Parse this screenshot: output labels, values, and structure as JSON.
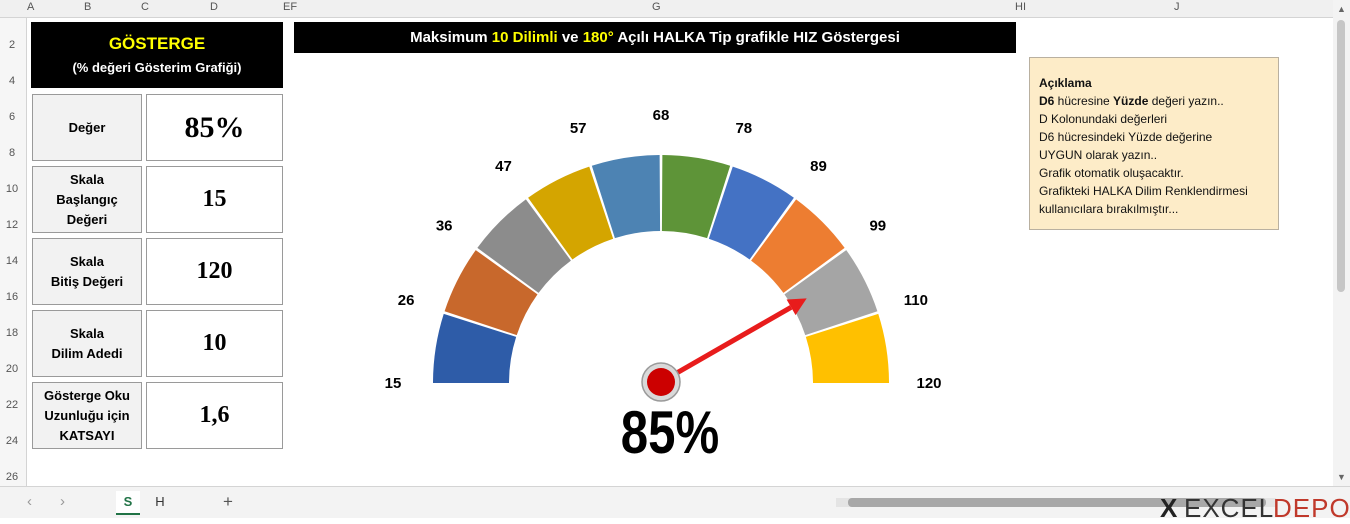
{
  "sheet": {
    "columns": [
      "A",
      "B",
      "C",
      "D",
      "EF",
      "G",
      "HI",
      "J"
    ],
    "rows": [
      "2",
      "4",
      "6",
      "8",
      "10",
      "12",
      "14",
      "16",
      "18",
      "20",
      "22",
      "24",
      "26"
    ]
  },
  "panel": {
    "title": "GÖSTERGE",
    "subtitle": "(% değeri Gösterim Grafiği)",
    "rows": [
      {
        "label": "Değer",
        "value": "85%"
      },
      {
        "label": "Skala\nBaşlangıç\nDeğeri",
        "value": "15"
      },
      {
        "label": "Skala\nBitiş Değeri",
        "value": "120"
      },
      {
        "label": "Skala\nDilim Adedi",
        "value": "10"
      },
      {
        "label": "Gösterge Oku\nUzunluğu için\nKATSAYI",
        "value": "1,6"
      }
    ]
  },
  "banner": {
    "part1": "Maksimum ",
    "hl1": "10 Dilimli",
    "part2": " ve ",
    "hl2": "180°",
    "part3": " Açılı HALKA Tip grafikle  HIZ  Göstergesi",
    "highlight_color": "#ffff00"
  },
  "note": {
    "heading": "Açıklama",
    "line1_b1": "D6",
    "line1_t1": " hücresine  ",
    "line1_b2": "Yüzde",
    "line1_t2": "  değeri yazın..",
    "lines": [
      "D Kolonundaki değerleri",
      "D6 hücresindeki Yüzde değerine",
      "UYGUN olarak yazın..",
      "Grafik otomatik oluşacaktır.",
      "Grafikteki HALKA Dilim Renklendirmesi",
      "kullanıcılara bırakılmıştır..."
    ]
  },
  "chart_data": {
    "type": "gauge",
    "scale_min": 15,
    "scale_max": 120,
    "segments": 10,
    "needle_percent": 85,
    "value_label": "85%",
    "tick_labels": [
      "15",
      "26",
      "36",
      "47",
      "57",
      "68",
      "78",
      "89",
      "99",
      "110",
      "120"
    ],
    "segment_colors": [
      "#2e5ca8",
      "#c8682c",
      "#8c8c8c",
      "#d4a500",
      "#4d83b3",
      "#5e9438",
      "#4472c4",
      "#ed7d31",
      "#a5a5a5",
      "#ffc000"
    ],
    "needle_color": "#e81c1c",
    "hub_color": "#cc0000"
  },
  "tabs": {
    "items": [
      "S",
      "H"
    ],
    "active": "S",
    "add": "+",
    "prev": "‹",
    "next": "›"
  },
  "brand": {
    "part1": "EXCEL",
    "part2": "DEPO",
    "mark": "X"
  }
}
